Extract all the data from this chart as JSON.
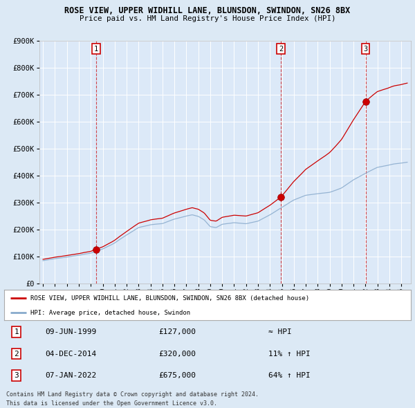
{
  "title": "ROSE VIEW, UPPER WIDHILL LANE, BLUNSDON, SWINDON, SN26 8BX",
  "subtitle": "Price paid vs. HM Land Registry's House Price Index (HPI)",
  "background_color": "#dce9f5",
  "plot_background": "#dce9f8",
  "legend_line1": "ROSE VIEW, UPPER WIDHILL LANE, BLUNSDON, SWINDON, SN26 8BX (detached house)",
  "legend_line2": "HPI: Average price, detached house, Swindon",
  "footer1": "Contains HM Land Registry data © Crown copyright and database right 2024.",
  "footer2": "This data is licensed under the Open Government Licence v3.0.",
  "transactions": [
    {
      "num": 1,
      "date": "09-JUN-1999",
      "price": 127000,
      "year": 1999.44,
      "hpi_note": "≈ HPI"
    },
    {
      "num": 2,
      "date": "04-DEC-2014",
      "price": 320000,
      "year": 2014.92,
      "hpi_note": "11% ↑ HPI"
    },
    {
      "num": 3,
      "date": "07-JAN-2022",
      "price": 675000,
      "year": 2022.02,
      "hpi_note": "64% ↑ HPI"
    }
  ],
  "ylim": [
    0,
    900000
  ],
  "yticks": [
    0,
    100000,
    200000,
    300000,
    400000,
    500000,
    600000,
    700000,
    800000,
    900000
  ],
  "ytick_labels": [
    "£0",
    "£100K",
    "£200K",
    "£300K",
    "£400K",
    "£500K",
    "£600K",
    "£700K",
    "£800K",
    "£900K"
  ],
  "xlim_start": 1994.7,
  "xlim_end": 2025.8,
  "red_color": "#cc0000",
  "blue_color": "#88aacc",
  "dashed_color": "#cc0000"
}
